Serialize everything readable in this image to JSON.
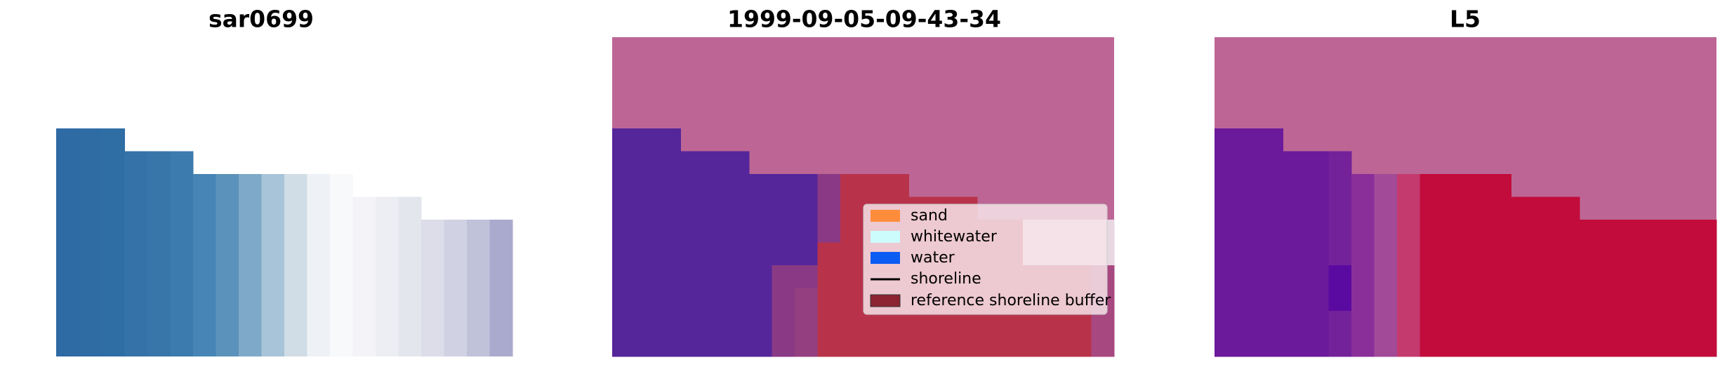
{
  "panels": [
    {
      "title": "sar0699"
    },
    {
      "title": "1999-09-05-09-43-34"
    },
    {
      "title": "L5"
    }
  ],
  "legend": {
    "items": [
      {
        "label": "sand"
      },
      {
        "label": "whitewater"
      },
      {
        "label": "water"
      },
      {
        "label": "shoreline"
      },
      {
        "label": "reference shoreline buffer"
      }
    ]
  }
}
